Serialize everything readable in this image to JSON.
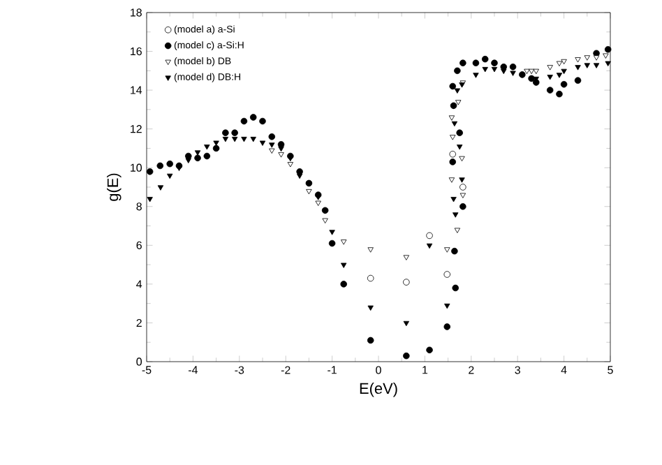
{
  "chart_data": {
    "type": "scatter",
    "xlabel": "E(eV)",
    "ylabel": "g(E)",
    "xlim": [
      -5,
      5
    ],
    "xticks": [
      -5,
      -4,
      -3,
      -2,
      -1,
      0,
      1,
      2,
      3,
      4,
      5
    ],
    "ylim": [
      0,
      18
    ],
    "yticks": [
      0,
      2,
      4,
      6,
      8,
      10,
      12,
      14,
      16,
      18
    ],
    "grid": false,
    "legend": "top left",
    "series": [
      {
        "name": "(model a) a-Si",
        "color": "#ffffff",
        "marker": "circle",
        "x": [
          -0.17,
          0.6,
          1.1,
          1.48,
          1.6,
          1.82
        ],
        "values": [
          4.3,
          4.1,
          6.5,
          4.5,
          10.7,
          9.0
        ]
      },
      {
        "name": "(model c) a-Si:H",
        "color": "#000000",
        "marker": "circle",
        "x": [
          -4.93,
          -4.71,
          -4.5,
          -4.3,
          -4.1,
          -3.9,
          -3.7,
          -3.5,
          -3.3,
          -3.1,
          -2.9,
          -2.7,
          -2.5,
          -2.3,
          -2.1,
          -1.9,
          -1.7,
          -1.5,
          -1.3,
          -1.15,
          -1.0,
          -0.75,
          -0.17,
          0.6,
          1.1,
          1.48,
          1.66,
          1.64,
          1.82,
          1.6,
          1.75,
          1.62,
          1.6,
          1.7,
          1.82,
          2.1,
          2.3,
          2.5,
          2.7,
          2.9,
          3.1,
          3.3,
          3.4,
          3.7,
          3.9,
          4.0,
          4.3,
          4.7,
          4.95
        ],
        "values": [
          9.8,
          10.1,
          10.2,
          10.1,
          10.6,
          10.5,
          10.6,
          11.0,
          11.8,
          11.8,
          12.4,
          12.6,
          12.4,
          11.6,
          11.2,
          10.6,
          9.8,
          9.2,
          8.6,
          7.8,
          6.1,
          4.0,
          1.1,
          0.3,
          0.6,
          1.8,
          3.8,
          5.7,
          8.0,
          10.3,
          11.8,
          13.2,
          14.2,
          15.0,
          15.4,
          15.4,
          15.6,
          15.4,
          15.2,
          15.2,
          14.8,
          14.6,
          14.4,
          14.0,
          13.8,
          14.3,
          14.5,
          15.9,
          16.1
        ]
      },
      {
        "name": "(model b)  DB",
        "color": "#ffffff",
        "marker": "triangle",
        "x": [
          -2.3,
          -2.1,
          -1.9,
          -1.5,
          -1.3,
          -1.15,
          -0.75,
          -0.17,
          0.6,
          1.48,
          1.7,
          1.82,
          1.58,
          1.8,
          1.6,
          1.58,
          1.72,
          1.82,
          3.2,
          3.3,
          3.4,
          3.7,
          3.9,
          4.0,
          4.3,
          4.5,
          4.7,
          4.9
        ],
        "values": [
          10.9,
          10.7,
          10.2,
          8.8,
          8.2,
          7.3,
          6.2,
          5.8,
          5.4,
          5.8,
          6.8,
          8.6,
          9.4,
          10.5,
          11.6,
          12.6,
          13.4,
          14.4,
          15.0,
          15.0,
          15.0,
          15.2,
          15.4,
          15.5,
          15.6,
          15.7,
          15.7,
          15.8
        ]
      },
      {
        "name": "(model d)  DB:H",
        "color": "#000000",
        "marker": "triangle",
        "x": [
          -4.93,
          -4.7,
          -4.5,
          -4.3,
          -4.1,
          -3.9,
          -3.7,
          -3.5,
          -3.3,
          -3.1,
          -2.9,
          -2.7,
          -2.5,
          -2.3,
          -2.1,
          -1.9,
          -1.7,
          -1.5,
          -1.3,
          -1.15,
          -1.0,
          -0.75,
          -0.17,
          0.6,
          1.1,
          1.48,
          1.66,
          1.62,
          1.8,
          1.75,
          1.64,
          1.62,
          1.7,
          1.8,
          2.1,
          2.3,
          2.5,
          2.7,
          2.9,
          3.1,
          3.3,
          3.4,
          3.7,
          3.9,
          4.0,
          4.3,
          4.5,
          4.7,
          4.95
        ],
        "values": [
          8.4,
          9.0,
          9.6,
          10.0,
          10.4,
          10.8,
          11.1,
          11.3,
          11.5,
          11.5,
          11.5,
          11.5,
          11.3,
          11.2,
          11.0,
          10.5,
          9.6,
          9.2,
          8.5,
          7.8,
          6.7,
          5.0,
          2.8,
          2.0,
          6.0,
          2.9,
          7.6,
          8.4,
          9.4,
          11.1,
          12.3,
          13.2,
          14.0,
          14.3,
          14.8,
          15.1,
          15.1,
          15.0,
          14.9,
          14.8,
          14.6,
          14.6,
          14.7,
          14.8,
          15.0,
          15.2,
          15.3,
          15.3,
          15.4
        ]
      }
    ]
  }
}
